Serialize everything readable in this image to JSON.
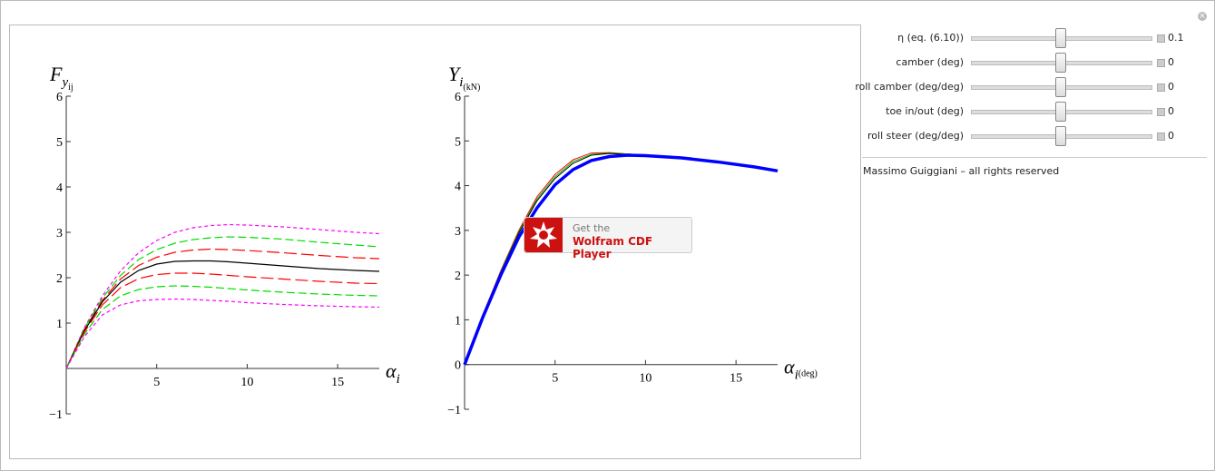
{
  "chart_data": [
    {
      "type": "line",
      "x_label": {
        "main": "α",
        "sub": "i"
      },
      "y_label": {
        "main": "F",
        "sub": "y",
        "subsub": "ij"
      },
      "xlim": [
        0,
        17.3
      ],
      "ylim": [
        -1,
        6
      ],
      "xticks": [
        5,
        10,
        15
      ],
      "yticks": [
        {
          "value": -1,
          "label": "−1"
        },
        1,
        2,
        3,
        4,
        5,
        6
      ],
      "x": [
        0,
        1,
        2,
        3,
        4,
        5,
        6,
        7,
        8,
        9,
        10,
        12,
        14,
        16,
        17.3
      ],
      "series": [
        {
          "color": "#ff00ff",
          "dash": "4,3",
          "values": [
            0,
            0.9,
            1.6,
            2.15,
            2.55,
            2.82,
            3.0,
            3.1,
            3.15,
            3.17,
            3.16,
            3.12,
            3.06,
            3.0,
            2.97
          ]
        },
        {
          "color": "#00dd00",
          "dash": "9,4",
          "values": [
            0,
            0.88,
            1.55,
            2.05,
            2.4,
            2.62,
            2.76,
            2.84,
            2.88,
            2.9,
            2.89,
            2.85,
            2.78,
            2.72,
            2.68
          ]
        },
        {
          "color": "#ff0000",
          "dash": "14,5",
          "values": [
            0,
            0.85,
            1.5,
            1.97,
            2.27,
            2.45,
            2.56,
            2.61,
            2.63,
            2.62,
            2.6,
            2.55,
            2.49,
            2.44,
            2.42
          ]
        },
        {
          "color": "#000000",
          "dash": "none",
          "values": [
            0,
            0.83,
            1.47,
            1.9,
            2.16,
            2.3,
            2.36,
            2.37,
            2.37,
            2.35,
            2.32,
            2.26,
            2.2,
            2.16,
            2.14
          ]
        },
        {
          "color": "#ff0000",
          "dash": "14,5",
          "values": [
            0,
            0.8,
            1.4,
            1.78,
            1.98,
            2.07,
            2.1,
            2.1,
            2.08,
            2.05,
            2.02,
            1.97,
            1.92,
            1.88,
            1.87
          ]
        },
        {
          "color": "#00dd00",
          "dash": "9,4",
          "values": [
            0,
            0.75,
            1.3,
            1.6,
            1.74,
            1.8,
            1.82,
            1.81,
            1.79,
            1.76,
            1.73,
            1.68,
            1.64,
            1.61,
            1.6
          ]
        },
        {
          "color": "#ff00ff",
          "dash": "4,3",
          "values": [
            0,
            0.7,
            1.18,
            1.4,
            1.49,
            1.52,
            1.53,
            1.52,
            1.5,
            1.48,
            1.45,
            1.41,
            1.38,
            1.36,
            1.35
          ]
        }
      ]
    },
    {
      "type": "line",
      "x_label": {
        "main": "α",
        "sub": "i",
        "subsub": "(deg)"
      },
      "y_label": {
        "main": "Y",
        "sub": "i",
        "subsub": "(kN)"
      },
      "xlim": [
        0,
        17.3
      ],
      "ylim": [
        -1,
        6
      ],
      "xticks": [
        5,
        10,
        15
      ],
      "yticks": [
        {
          "value": -1,
          "label": "−1"
        },
        0,
        1,
        2,
        3,
        4,
        5,
        6
      ],
      "x": [
        0,
        1,
        2,
        3,
        4,
        5,
        6,
        7,
        8,
        9,
        10,
        12,
        14,
        16,
        17.3
      ],
      "series": [
        {
          "color": "#ff0000",
          "width": 1,
          "values": [
            0,
            1.1,
            2.1,
            3.0,
            3.75,
            4.25,
            4.58,
            4.73,
            4.74,
            4.71,
            4.68,
            4.6,
            4.52,
            4.4,
            4.33
          ]
        },
        {
          "color": "#00bb00",
          "width": 1,
          "values": [
            0,
            1.09,
            2.08,
            2.97,
            3.7,
            4.2,
            4.54,
            4.7,
            4.73,
            4.71,
            4.68,
            4.6,
            4.52,
            4.4,
            4.33
          ]
        },
        {
          "color": "#000000",
          "width": 1,
          "values": [
            0,
            1.08,
            2.06,
            2.94,
            3.66,
            4.16,
            4.5,
            4.68,
            4.72,
            4.7,
            4.67,
            4.6,
            4.52,
            4.4,
            4.33
          ]
        },
        {
          "color": "#0000ff",
          "width": 3.5,
          "values": [
            0,
            1.05,
            2.0,
            2.85,
            3.5,
            4.02,
            4.36,
            4.56,
            4.65,
            4.68,
            4.67,
            4.62,
            4.53,
            4.42,
            4.33
          ]
        }
      ]
    }
  ],
  "controls": [
    {
      "label": "η (eq. (6.10))",
      "value": "0.1"
    },
    {
      "label": "camber (deg)",
      "value": "0"
    },
    {
      "label": "roll camber (deg/deg)",
      "value": "0"
    },
    {
      "label": "toe in/out (deg)",
      "value": "0"
    },
    {
      "label": "roll steer (deg/deg)",
      "value": "0"
    }
  ],
  "credit": "Massimo Guiggiani – all rights reserved",
  "badge": {
    "line1": "Get the",
    "line2": "Wolfram CDF Player"
  }
}
